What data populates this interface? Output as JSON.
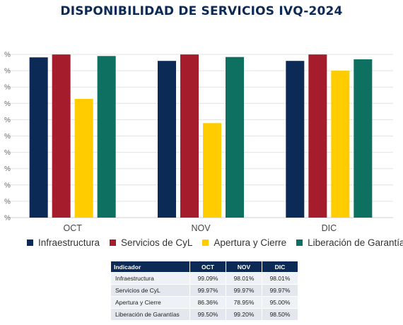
{
  "title": "DISPONIBILIDAD DE SERVICIOS IVQ-2024",
  "chart_data": {
    "type": "bar",
    "categories": [
      "OCT",
      "NOV",
      "DIC"
    ],
    "series": [
      {
        "name": "Infraestructura",
        "values": [
          99.09,
          98.01,
          98.01
        ],
        "color": "#0b2a55"
      },
      {
        "name": "Servicios de CyL",
        "values": [
          99.97,
          99.97,
          99.97
        ],
        "color": "#a51c2d"
      },
      {
        "name": "Apertura y Cierre",
        "values": [
          86.36,
          78.95,
          95.0
        ],
        "color": "#ffcc00"
      },
      {
        "name": "Liberación de Garantías",
        "values": [
          99.5,
          99.2,
          98.5
        ],
        "color": "#0e7060"
      }
    ],
    "ylim": [
      50,
      100
    ],
    "grid": true,
    "legend_position": "bottom",
    "xlabel": "",
    "ylabel": ""
  },
  "table": {
    "headers": [
      "Indicador",
      "OCT",
      "NOV",
      "DIC"
    ],
    "rows": [
      [
        "Infraestructura",
        "99.09%",
        "98.01%",
        "98.01%"
      ],
      [
        "Servicios de CyL",
        "99.97%",
        "99.97%",
        "99.97%"
      ],
      [
        "Apertura y Cierre",
        "86.36%",
        "78.95%",
        "95.00%"
      ],
      [
        "Liberación de Garantías",
        "99.50%",
        "99.20%",
        "98.50%"
      ]
    ]
  }
}
